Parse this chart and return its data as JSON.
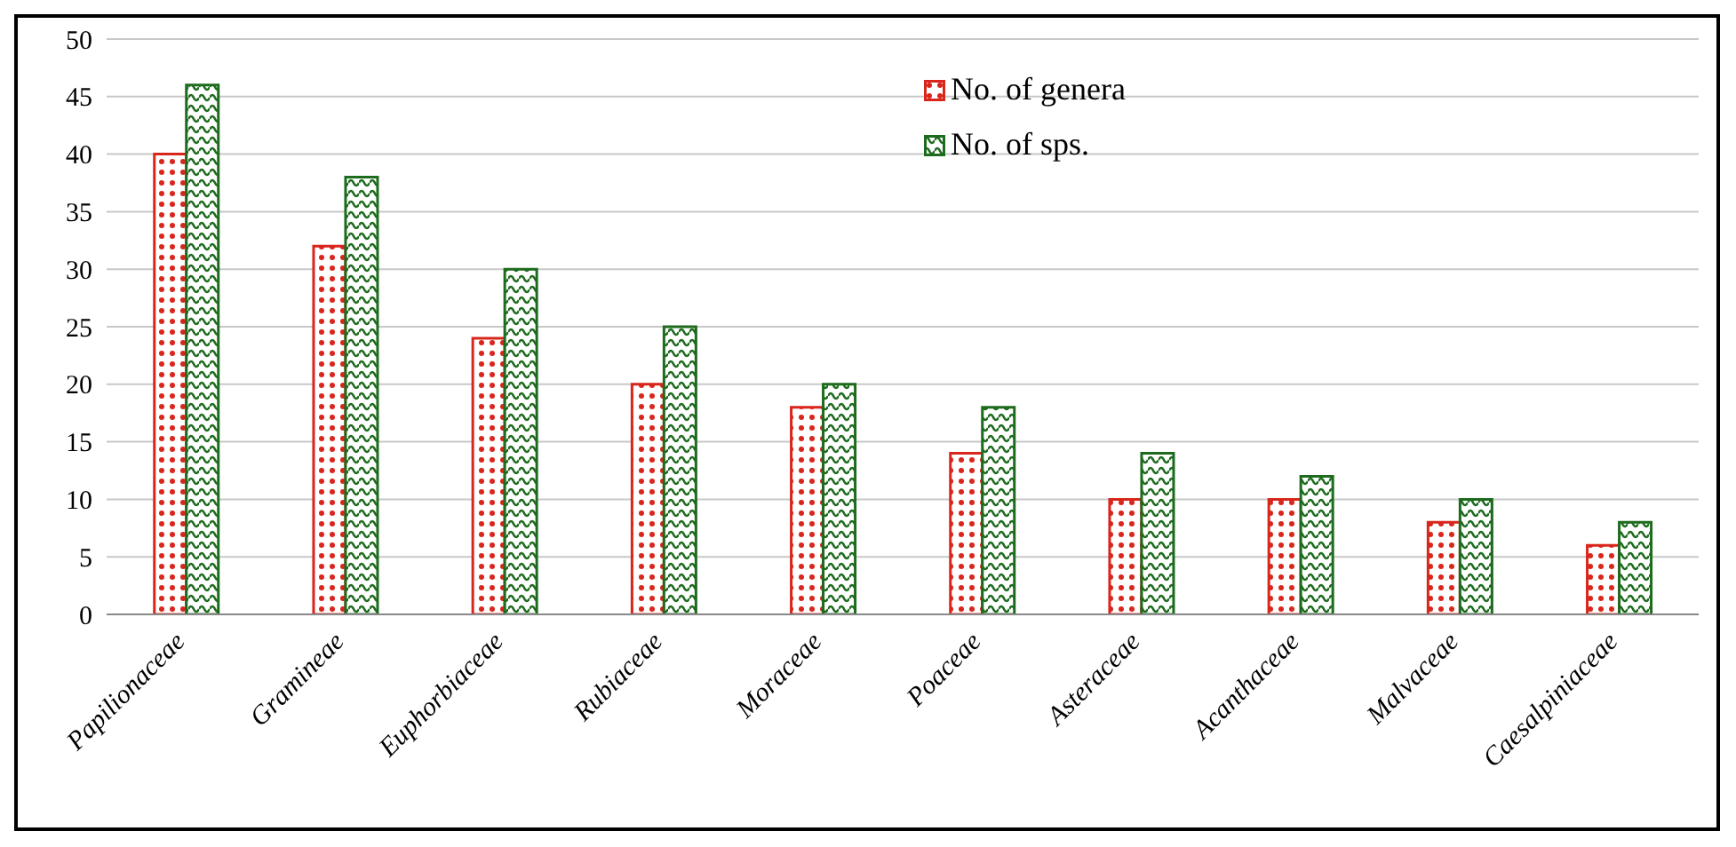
{
  "chart_data": {
    "type": "bar",
    "categories": [
      "Papilionaceae",
      "Gramineae",
      "Euphorbiaceae",
      "Rubiaceae",
      "Moraceae",
      "Poaceae",
      "Asteraceae",
      "Acanthaceae",
      "Malvaceae",
      "Caesalpiniaceae"
    ],
    "series": [
      {
        "name": "No. of genera",
        "color": "#d9261c",
        "values": [
          40,
          32,
          24,
          20,
          18,
          14,
          10,
          10,
          8,
          6
        ]
      },
      {
        "name": "No. of sps.",
        "color": "#1e6b1e",
        "values": [
          46,
          38,
          30,
          25,
          20,
          18,
          14,
          12,
          10,
          8
        ]
      }
    ],
    "ylim": [
      0,
      50
    ],
    "yticks": [
      0,
      5,
      10,
      15,
      20,
      25,
      30,
      35,
      40,
      45,
      50
    ],
    "grid": "y",
    "legend": "top"
  }
}
